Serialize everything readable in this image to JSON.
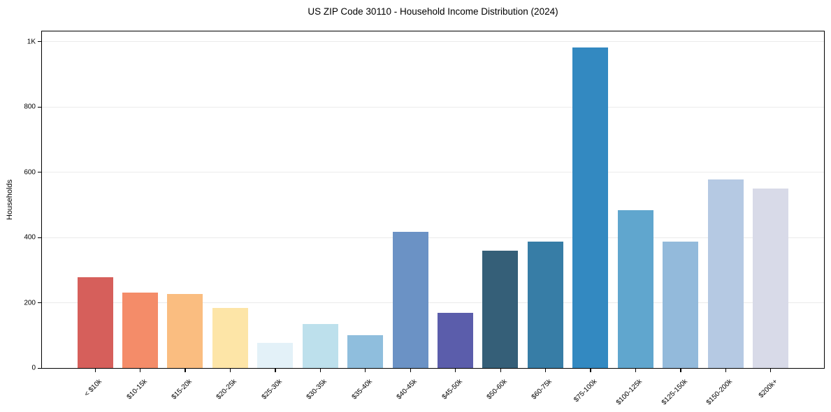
{
  "figure": {
    "title": "US ZIP Code 30110 - Household Income Distribution (2024)",
    "ylabel": "Households"
  },
  "chart_data": {
    "type": "bar",
    "title": "US ZIP Code 30110 - Household Income Distribution (2024)",
    "xlabel": "",
    "ylabel": "Households",
    "categories": [
      "< $10k",
      "$10-15k",
      "$15-20k",
      "$20-25k",
      "$25-30k",
      "$30-35k",
      "$35-40k",
      "$40-45k",
      "$45-50k",
      "$50-60k",
      "$60-75k",
      "$75-100k",
      "$100-125k",
      "$125-150k",
      "$150-200k",
      "$200k+"
    ],
    "values": [
      277,
      231,
      227,
      184,
      76,
      134,
      101,
      417,
      168,
      360,
      388,
      982,
      484,
      388,
      578,
      550
    ],
    "bar_colors": [
      "#d65f5b",
      "#f48c69",
      "#fabd80",
      "#fde5a7",
      "#e3f1f8",
      "#bde0ec",
      "#8fbedd",
      "#6b92c5",
      "#5b5dab",
      "#355f78",
      "#377da6",
      "#3389c1",
      "#60a6ce",
      "#93badb",
      "#b5c9e3",
      "#d8dae8"
    ],
    "yticks": {
      "values": [
        0,
        200,
        400,
        600,
        800,
        1000
      ],
      "labels": [
        "0",
        "200",
        "400",
        "600",
        "800",
        "1K"
      ]
    },
    "ylim": [
      0,
      1030
    ],
    "grid": "horizontal",
    "gridline_color": "#ebebeb",
    "axis_color": "#000000",
    "background": "#ffffff",
    "legend": "none",
    "x_tick_rotation_deg": 45
  }
}
